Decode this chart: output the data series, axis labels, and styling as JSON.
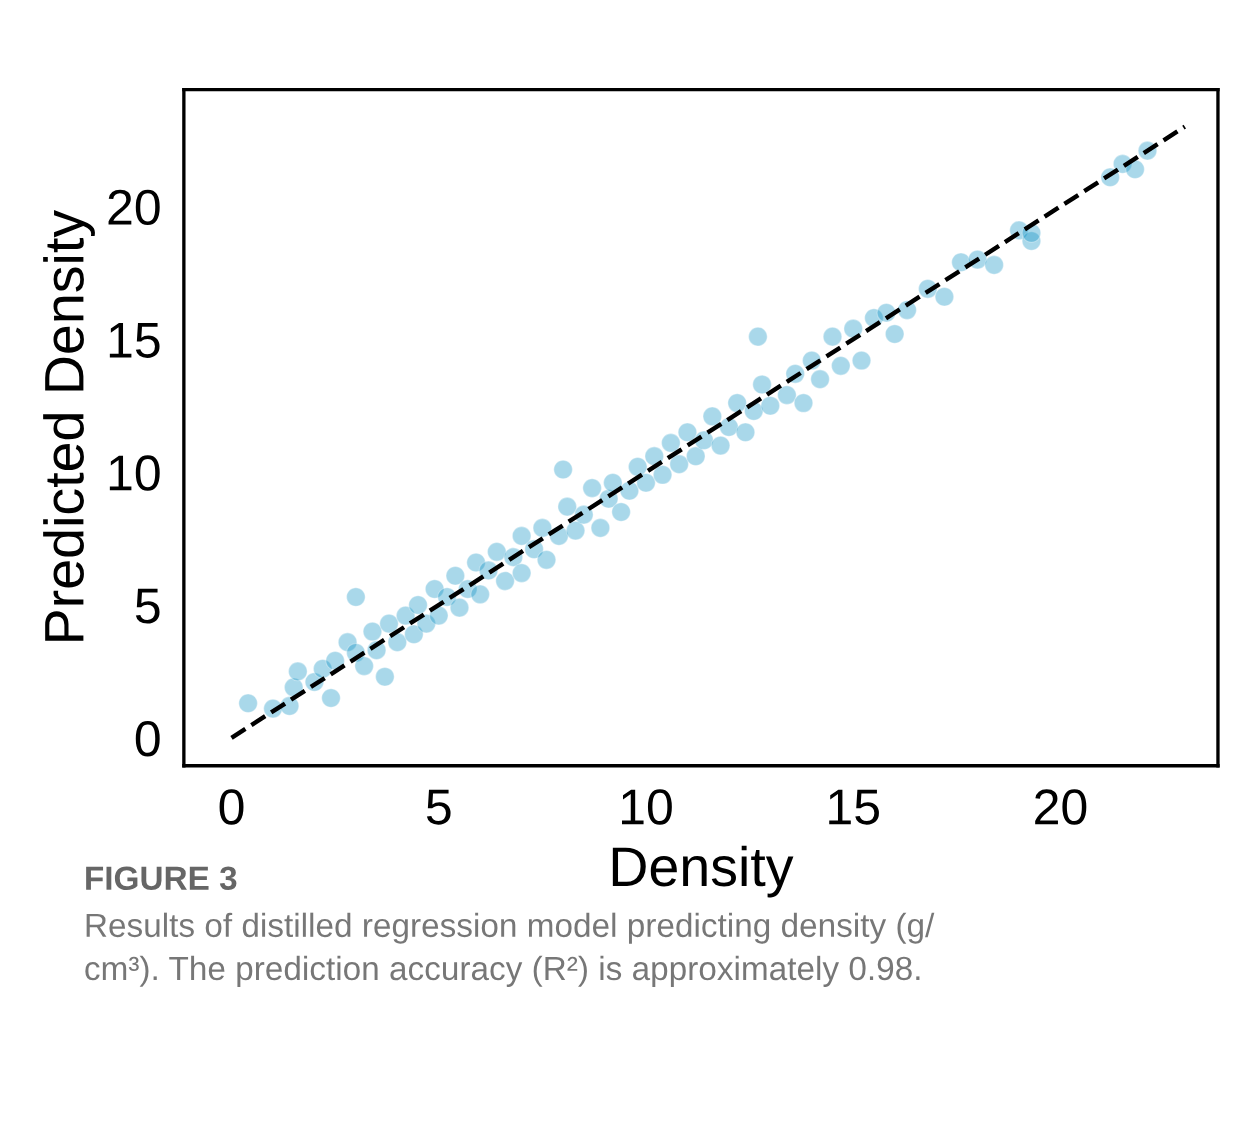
{
  "chart_data": {
    "type": "scatter",
    "xlabel": "Density",
    "ylabel": "Predicted Density",
    "xlim": [
      -1.15,
      23.8
    ],
    "ylim": [
      -1.05,
      24.4
    ],
    "xticks": [
      0,
      5,
      10,
      15,
      20
    ],
    "yticks": [
      0,
      5,
      10,
      15,
      20
    ],
    "grid": false,
    "legend": false,
    "marker": "circle",
    "series": [
      {
        "color": "#0a8fc4",
        "x": [
          0.4,
          1.0,
          1.4,
          1.5,
          1.6,
          2.0,
          2.2,
          2.5,
          2.4,
          2.8,
          3.0,
          3.0,
          3.2,
          3.4,
          3.5,
          3.7,
          3.8,
          4.0,
          4.2,
          4.4,
          4.5,
          4.7,
          4.9,
          5.0,
          5.2,
          5.4,
          5.5,
          5.7,
          5.9,
          6.0,
          6.2,
          6.4,
          6.6,
          6.8,
          7.0,
          7.0,
          7.3,
          7.5,
          7.6,
          7.9,
          8.0,
          8.1,
          8.3,
          8.5,
          8.7,
          8.9,
          9.1,
          9.2,
          9.4,
          9.6,
          9.8,
          10.0,
          10.2,
          10.4,
          10.6,
          10.8,
          11.0,
          11.2,
          11.4,
          11.6,
          11.8,
          12.0,
          12.2,
          12.4,
          12.6,
          12.7,
          12.8,
          13.0,
          13.4,
          13.6,
          13.8,
          14.0,
          14.2,
          14.5,
          14.7,
          15.0,
          15.2,
          15.5,
          15.8,
          16.0,
          16.3,
          16.8,
          17.2,
          17.6,
          18.0,
          18.4,
          19.0,
          19.3,
          19.3,
          21.2,
          21.5,
          21.8,
          22.1
        ],
        "values": [
          1.3,
          1.1,
          1.2,
          1.9,
          2.5,
          2.1,
          2.6,
          2.9,
          1.5,
          3.6,
          3.2,
          5.3,
          2.7,
          4.0,
          3.3,
          2.3,
          4.3,
          3.6,
          4.6,
          3.9,
          5.0,
          4.3,
          5.6,
          4.6,
          5.3,
          6.1,
          4.9,
          5.6,
          6.6,
          5.4,
          6.3,
          7.0,
          5.9,
          6.8,
          7.6,
          6.2,
          7.1,
          7.9,
          6.7,
          7.6,
          10.1,
          8.7,
          7.8,
          8.4,
          9.4,
          7.9,
          9.0,
          9.6,
          8.5,
          9.3,
          10.2,
          9.6,
          10.6,
          9.9,
          11.1,
          10.3,
          11.5,
          10.6,
          11.2,
          12.1,
          11.0,
          11.7,
          12.6,
          11.5,
          12.3,
          15.1,
          13.3,
          12.5,
          12.9,
          13.7,
          12.6,
          14.2,
          13.5,
          15.1,
          14.0,
          15.4,
          14.2,
          15.8,
          16.0,
          15.2,
          16.1,
          16.9,
          16.6,
          17.9,
          18.0,
          17.8,
          19.1,
          18.7,
          19.0,
          21.1,
          21.6,
          21.4,
          22.1
        ]
      },
      {
        "type": "line",
        "color": "#000000",
        "line_style": "dashed",
        "marker": "none",
        "x": [
          0,
          23
        ],
        "values": [
          0,
          23
        ]
      }
    ],
    "annotations": [
      "FIGURE 3",
      "Results of distilled regression model predicting density (g/\ncm³). The prediction accuracy (R²) is approximately 0.98."
    ]
  }
}
